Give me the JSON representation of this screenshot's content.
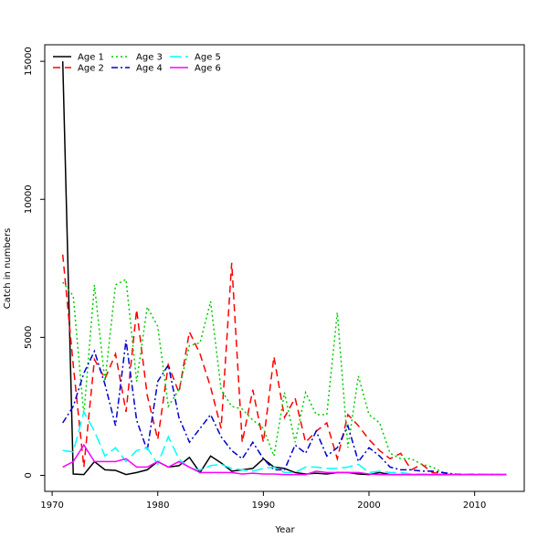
{
  "chart_data": {
    "type": "line",
    "title": "",
    "xlabel": "Year",
    "ylabel": "Catch in numbers",
    "xlim": [
      1970,
      2013
    ],
    "ylim": [
      0,
      15000
    ],
    "x_ticks": [
      "1970",
      "1980",
      "1990",
      "2000",
      "2010"
    ],
    "y_ticks": [
      "0",
      "5000",
      "10000",
      "15000"
    ],
    "grid": false,
    "legend_position": "top-left",
    "x": [
      1971,
      1972,
      1973,
      1974,
      1975,
      1976,
      1977,
      1978,
      1979,
      1980,
      1981,
      1982,
      1983,
      1984,
      1985,
      1986,
      1987,
      1988,
      1989,
      1990,
      1991,
      1992,
      1993,
      1994,
      1995,
      1996,
      1997,
      1998,
      1999,
      2000,
      2001,
      2002,
      2003,
      2004,
      2005,
      2006,
      2007,
      2008,
      2009,
      2010,
      2011,
      2012,
      2013
    ],
    "series": [
      {
        "name": "Age 1",
        "color": "#000000",
        "dash": "solid",
        "values": [
          15000,
          50,
          30,
          500,
          200,
          180,
          30,
          100,
          200,
          500,
          300,
          350,
          650,
          100,
          700,
          450,
          150,
          200,
          250,
          600,
          300,
          250,
          100,
          50,
          80,
          50,
          100,
          100,
          50,
          30,
          100,
          30,
          30,
          30,
          30,
          30,
          30,
          30,
          30,
          30,
          30,
          30,
          30
        ]
      },
      {
        "name": "Age 2",
        "color": "#ff0000",
        "dash": "dashed",
        "values": [
          8000,
          4000,
          300,
          4200,
          3500,
          4400,
          2300,
          6000,
          2900,
          1300,
          4000,
          3000,
          5200,
          4400,
          3200,
          1700,
          7700,
          1200,
          3100,
          1200,
          4300,
          2100,
          2800,
          1200,
          1600,
          1900,
          600,
          2200,
          1800,
          1300,
          900,
          600,
          800,
          200,
          400,
          100,
          50,
          30,
          30,
          50,
          30,
          30,
          30
        ]
      },
      {
        "name": "Age 3",
        "color": "#00cc00",
        "dash": "dotted",
        "values": [
          7000,
          6500,
          2200,
          6900,
          3400,
          6900,
          7100,
          3400,
          6100,
          5400,
          2500,
          3100,
          4700,
          4800,
          6300,
          3100,
          2500,
          2400,
          2000,
          1700,
          700,
          3000,
          1200,
          3000,
          2200,
          2200,
          5900,
          1000,
          3600,
          2200,
          1900,
          800,
          600,
          600,
          400,
          300,
          100,
          50,
          30,
          30,
          30,
          30,
          30
        ]
      },
      {
        "name": "Age 4",
        "color": "#0000cc",
        "dash": "dash-dot",
        "values": [
          1900,
          2500,
          3700,
          4500,
          3300,
          1800,
          4900,
          2000,
          900,
          3400,
          4000,
          2100,
          1200,
          1700,
          2200,
          1400,
          900,
          600,
          1200,
          600,
          200,
          200,
          1100,
          800,
          1600,
          700,
          1000,
          1800,
          500,
          1000,
          700,
          300,
          200,
          200,
          150,
          150,
          100,
          50,
          30,
          30,
          30,
          30,
          30
        ]
      },
      {
        "name": "Age 5",
        "color": "#00ffff",
        "dash": "long-dash",
        "values": [
          900,
          850,
          2300,
          1600,
          700,
          1000,
          500,
          900,
          1000,
          400,
          1400,
          600,
          250,
          200,
          350,
          400,
          250,
          200,
          150,
          250,
          300,
          100,
          100,
          300,
          300,
          250,
          250,
          300,
          400,
          100,
          150,
          100,
          100,
          50,
          50,
          50,
          50,
          30,
          30,
          30,
          30,
          30,
          30
        ]
      },
      {
        "name": "Age 6",
        "color": "#ff00ff",
        "dash": "solid",
        "values": [
          300,
          500,
          1100,
          500,
          500,
          500,
          600,
          300,
          300,
          500,
          300,
          500,
          300,
          100,
          100,
          100,
          100,
          50,
          80,
          50,
          50,
          30,
          30,
          30,
          150,
          100,
          100,
          100,
          100,
          50,
          30,
          30,
          30,
          30,
          30,
          30,
          30,
          30,
          30,
          30,
          30,
          30,
          30
        ]
      }
    ]
  }
}
